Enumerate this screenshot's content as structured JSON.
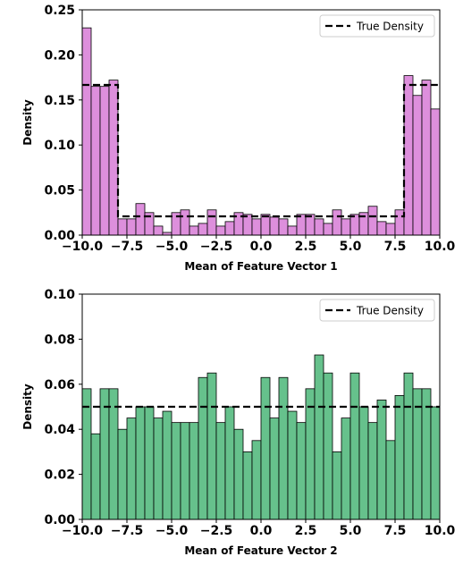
{
  "chart_data": [
    {
      "type": "bar",
      "subtype": "histogram",
      "title": "",
      "xlabel": "Mean of Feature Vector 1",
      "ylabel": "Density",
      "xlim": [
        -10.0,
        10.0
      ],
      "ylim": [
        0.0,
        0.25
      ],
      "xticks": [
        "−10.0",
        "−7.5",
        "−5.0",
        "−2.5",
        "0.0",
        "2.5",
        "5.0",
        "7.5",
        "10.0"
      ],
      "yticks": [
        "0.00",
        "0.05",
        "0.10",
        "0.15",
        "0.20",
        "0.25"
      ],
      "bin_width": 0.5,
      "bar_color": "#dd8fdc",
      "edge_color": "#000000",
      "bins_start": -10.0,
      "values": [
        0.23,
        0.165,
        0.165,
        0.172,
        0.018,
        0.018,
        0.035,
        0.025,
        0.01,
        0.003,
        0.025,
        0.028,
        0.01,
        0.013,
        0.028,
        0.01,
        0.015,
        0.025,
        0.023,
        0.018,
        0.023,
        0.02,
        0.018,
        0.01,
        0.023,
        0.023,
        0.018,
        0.013,
        0.028,
        0.018,
        0.023,
        0.025,
        0.032,
        0.015,
        0.013,
        0.028,
        0.177,
        0.155,
        0.172,
        0.14
      ],
      "true_density": {
        "label": "True Density",
        "x": [
          -10.0,
          -8.0,
          -8.0,
          8.0,
          8.0,
          10.0
        ],
        "y": [
          0.1667,
          0.1667,
          0.0208,
          0.0208,
          0.1667,
          0.1667
        ]
      },
      "legend_position": "top-right",
      "grid": false
    },
    {
      "type": "bar",
      "subtype": "histogram",
      "title": "",
      "xlabel": "Mean of Feature Vector 2",
      "ylabel": "Density",
      "xlim": [
        -10.0,
        10.0
      ],
      "ylim": [
        0.0,
        0.1
      ],
      "xticks": [
        "−10.0",
        "−7.5",
        "−5.0",
        "−2.5",
        "0.0",
        "2.5",
        "5.0",
        "7.5",
        "10.0"
      ],
      "yticks": [
        "0.00",
        "0.02",
        "0.04",
        "0.06",
        "0.08",
        "0.10"
      ],
      "bin_width": 0.5,
      "bar_color": "#66c18c",
      "edge_color": "#000000",
      "bins_start": -10.0,
      "values": [
        0.058,
        0.038,
        0.058,
        0.058,
        0.04,
        0.045,
        0.05,
        0.05,
        0.045,
        0.048,
        0.043,
        0.043,
        0.043,
        0.063,
        0.065,
        0.043,
        0.05,
        0.04,
        0.03,
        0.035,
        0.063,
        0.045,
        0.063,
        0.048,
        0.043,
        0.058,
        0.073,
        0.065,
        0.03,
        0.045,
        0.065,
        0.05,
        0.043,
        0.053,
        0.035,
        0.055,
        0.065,
        0.058,
        0.058,
        0.05
      ],
      "true_density": {
        "label": "True Density",
        "x": [
          -10.0,
          10.0
        ],
        "y": [
          0.05,
          0.05
        ]
      },
      "legend_position": "top-right",
      "grid": false
    }
  ]
}
